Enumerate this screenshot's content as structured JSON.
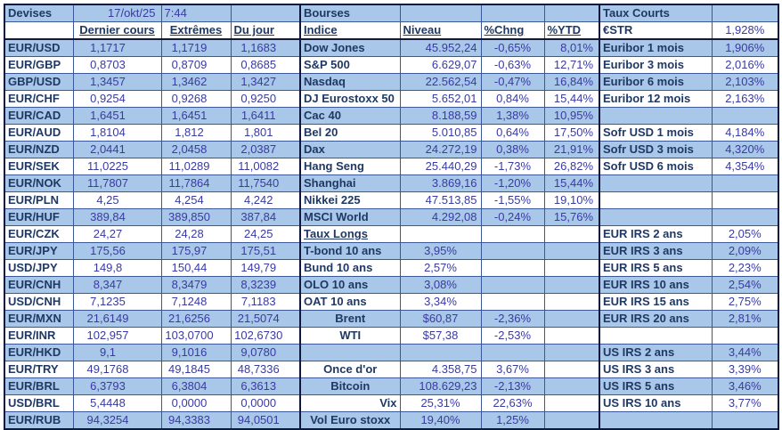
{
  "colors": {
    "row_blue": "#A9C7E8",
    "label_text": "#1F3864",
    "value_text": "#3A3AA4",
    "grid_line": "#3A5796",
    "section_border": "#101840"
  },
  "sheet": {
    "devises": {
      "title": "Devises",
      "date": "17/okt/25",
      "time": "7:44",
      "headers": [
        "Dernier cours",
        "Extrêmes",
        "Du jour"
      ],
      "rows": [
        {
          "pair": "EUR/USD",
          "dernier": "1,1717",
          "extremes": "1,1719",
          "du_jour": "1,1683"
        },
        {
          "pair": "EUR/GBP",
          "dernier": "0,8703",
          "extremes": "0,8709",
          "du_jour": "0,8685"
        },
        {
          "pair": "GBP/USD",
          "dernier": "1,3457",
          "extremes": "1,3462",
          "du_jour": "1,3427"
        },
        {
          "pair": "EUR/CHF",
          "dernier": "0,9254",
          "extremes": "0,9268",
          "du_jour": "0,9250"
        },
        {
          "pair": "EUR/CAD",
          "dernier": "1,6451",
          "extremes": "1,6451",
          "du_jour": "1,6411"
        },
        {
          "pair": "EUR/AUD",
          "dernier": "1,8104",
          "extremes": "1,812",
          "du_jour": "1,801"
        },
        {
          "pair": "EUR/NZD",
          "dernier": "2,0441",
          "extremes": "2,0458",
          "du_jour": "2,0387"
        },
        {
          "pair": "EUR/SEK",
          "dernier": "11,0225",
          "extremes": "11,0289",
          "du_jour": "11,0082"
        },
        {
          "pair": "EUR/NOK",
          "dernier": "11,7807",
          "extremes": "11,7864",
          "du_jour": "11,7540"
        },
        {
          "pair": "EUR/PLN",
          "dernier": "4,25",
          "extremes": "4,254",
          "du_jour": "4,242"
        },
        {
          "pair": "EUR/HUF",
          "dernier": "389,84",
          "extremes": "389,850",
          "du_jour": "387,84"
        },
        {
          "pair": "EUR/CZK",
          "dernier": "24,27",
          "extremes": "24,28",
          "du_jour": "24,25"
        },
        {
          "pair": "EUR/JPY",
          "dernier": "175,56",
          "extremes": "175,97",
          "du_jour": "175,51"
        },
        {
          "pair": "USD/JPY",
          "dernier": "149,8",
          "extremes": "150,44",
          "du_jour": "149,79"
        },
        {
          "pair": "EUR/CNH",
          "dernier": "8,347",
          "extremes": "8,3479",
          "du_jour": "8,3239"
        },
        {
          "pair": "USD/CNH",
          "dernier": "7,1235",
          "extremes": "7,1248",
          "du_jour": "7,1183"
        },
        {
          "pair": "EUR/MXN",
          "dernier": "21,6149",
          "extremes": "21,6256",
          "du_jour": "21,5074"
        },
        {
          "pair": "EUR/INR",
          "dernier": "102,957",
          "extremes": "103,0700",
          "du_jour": "102,6730"
        },
        {
          "pair": "EUR/HKD",
          "dernier": "9,1",
          "extremes": "9,1016",
          "du_jour": "9,0780"
        },
        {
          "pair": "EUR/TRY",
          "dernier": "49,1768",
          "extremes": "49,1845",
          "du_jour": "48,7336"
        },
        {
          "pair": "EUR/BRL",
          "dernier": "6,3793",
          "extremes": "6,3804",
          "du_jour": "6,3613"
        },
        {
          "pair": "USD/BRL",
          "dernier": "5,4448",
          "extremes": "0,0000",
          "du_jour": "0,0000"
        },
        {
          "pair": "EUR/RUB",
          "dernier": "94,3254",
          "extremes": "94,3383",
          "du_jour": "94,0501"
        }
      ]
    },
    "bourses": {
      "title": "Bourses",
      "headers": [
        "Indice",
        "Niveau",
        "%Chng",
        "%YTD"
      ]
    },
    "middle_rows": [
      {
        "label": "Dow Jones",
        "niveau": "45.952,24",
        "chng": "-0,65%",
        "ytd": "8,01%"
      },
      {
        "label": "S&P 500",
        "niveau": "6.629,07",
        "chng": "-0,63%",
        "ytd": "12,71%"
      },
      {
        "label": "Nasdaq",
        "niveau": "22.562,54",
        "chng": "-0,47%",
        "ytd": "16,84%"
      },
      {
        "label": "DJ Eurostoxx 50",
        "niveau": "5.652,01",
        "chng": "0,84%",
        "ytd": "15,44%"
      },
      {
        "label": "Cac 40",
        "niveau": "8.188,59",
        "chng": "1,38%",
        "ytd": "10,95%"
      },
      {
        "label": "Bel 20",
        "niveau": "5.010,85",
        "chng": "0,64%",
        "ytd": "17,50%"
      },
      {
        "label": "Dax",
        "niveau": "24.272,19",
        "chng": "0,38%",
        "ytd": "21,91%"
      },
      {
        "label": "Hang Seng",
        "niveau": "25.440,29",
        "chng": "-1,73%",
        "ytd": "26,82%"
      },
      {
        "label": "Shanghai",
        "niveau": "3.869,16",
        "chng": "-1,20%",
        "ytd": "15,44%"
      },
      {
        "label": "Nikkei 225",
        "niveau": "47.513,85",
        "chng": "-1,55%",
        "ytd": "19,10%"
      },
      {
        "label": "MSCI World",
        "niveau": "4.292,08",
        "chng": "-0,24%",
        "ytd": "15,76%"
      },
      {
        "label": "Taux Longs",
        "underline": true
      },
      {
        "label": "T-bond 10 ans",
        "niveau": "3,95%",
        "niveau_align": "center"
      },
      {
        "label": "Bund 10 ans",
        "niveau": "2,57%",
        "niveau_align": "center"
      },
      {
        "label": "OLO 10 ans",
        "niveau": "3,08%",
        "niveau_align": "center"
      },
      {
        "label": "OAT 10 ans",
        "niveau": "3,34%",
        "niveau_align": "center"
      },
      {
        "label": "Brent",
        "label_align": "center",
        "niveau": "$60,87",
        "niveau_align": "center",
        "chng": "-2,36%"
      },
      {
        "label": "WTI",
        "label_align": "center",
        "niveau": "$57,38",
        "niveau_align": "center",
        "chng": "-2,53%"
      },
      null,
      {
        "label": "Once d'or",
        "label_align": "center",
        "niveau": "4.358,75",
        "chng": "3,67%"
      },
      {
        "label": "Bitcoin",
        "label_align": "center",
        "niveau": "108.629,23",
        "chng": "-2,13%"
      },
      {
        "label": "Vix",
        "label_align": "right",
        "niveau": "25,31%",
        "niveau_align": "center",
        "chng": "22,63%"
      },
      {
        "label": "Vol Euro stoxx",
        "label_align": "center",
        "niveau": "19,40%",
        "niveau_align": "center",
        "chng": "1,25%"
      }
    ],
    "taux_courts": {
      "title": "Taux Courts",
      "estr": {
        "label": "€STR",
        "value": "1,928%"
      },
      "rows": [
        {
          "label": "Euribor 1 mois",
          "value": "1,906%"
        },
        {
          "label": "Euribor 3 mois",
          "value": "2,016%"
        },
        {
          "label": "Euribor 6 mois",
          "value": "2,103%"
        },
        {
          "label": "Euribor 12 mois",
          "value": "2,163%"
        },
        null,
        {
          "label": "Sofr USD 1 mois",
          "value": "4,184%"
        },
        {
          "label": "Sofr USD 3 mois",
          "value": "4,320%"
        },
        {
          "label": "Sofr USD 6 mois",
          "value": "4,354%"
        },
        null,
        null,
        null,
        {
          "label": "EUR IRS 2 ans",
          "value": "2,05%"
        },
        {
          "label": "EUR IRS 3 ans",
          "value": "2,09%"
        },
        {
          "label": "EUR IRS 5 ans",
          "value": "2,23%"
        },
        {
          "label": "EUR IRS 10 ans",
          "value": "2,54%"
        },
        {
          "label": "EUR IRS 15 ans",
          "value": "2,75%"
        },
        {
          "label": "EUR IRS 20 ans",
          "value": "2,81%"
        },
        null,
        {
          "label": "US IRS 2 ans",
          "value": "3,44%"
        },
        {
          "label": "US IRS 3 ans",
          "value": "3,39%"
        },
        {
          "label": "US IRS 5 ans",
          "value": "3,46%"
        },
        {
          "label": "US IRS 10 ans",
          "value": "3,77%"
        },
        null
      ]
    }
  }
}
